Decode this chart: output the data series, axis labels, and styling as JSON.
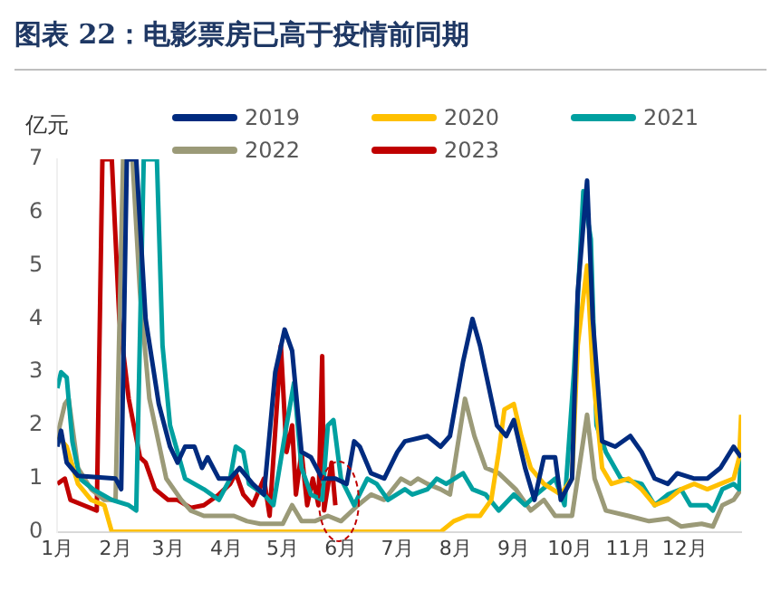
{
  "chart_data": {
    "type": "line",
    "title": "图表 22：电影票房已高于疫情前同期",
    "ylabel": "亿元",
    "xlim": [
      "--01-01",
      "--12-31"
    ],
    "xticks": [
      {
        "value": "--01-01",
        "label": "1月"
      },
      {
        "value": "--02-01",
        "label": "2月"
      },
      {
        "value": "--03-01",
        "label": "3月"
      },
      {
        "value": "--04-01",
        "label": "4月"
      },
      {
        "value": "--05-01",
        "label": "5月"
      },
      {
        "value": "--06-01",
        "label": "6月"
      },
      {
        "value": "--07-01",
        "label": "7月"
      },
      {
        "value": "--08-01",
        "label": "8月"
      },
      {
        "value": "--09-01",
        "label": "9月"
      },
      {
        "value": "--10-01",
        "label": "10月"
      },
      {
        "value": "--11-01",
        "label": "11月"
      },
      {
        "value": "--12-01",
        "label": "12月"
      }
    ],
    "ylim": [
      0,
      7
    ],
    "yticks": [
      0,
      1,
      2,
      3,
      4,
      5,
      6,
      7
    ],
    "grid": false,
    "legend": "top",
    "marker": "none",
    "line_style": "solid",
    "series": [
      {
        "name": "2019",
        "color": "#002b7f",
        "x": [
          "--01-01",
          "--01-03",
          "--01-06",
          "--01-12",
          "--02-01",
          "--02-04",
          "--02-07",
          "--02-12",
          "--02-17",
          "--02-24",
          "--03-02",
          "--03-06",
          "--03-10",
          "--03-15",
          "--03-19",
          "--03-22",
          "--03-28",
          "--04-03",
          "--04-08",
          "--04-15",
          "--04-21",
          "--04-27",
          "--05-02",
          "--05-06",
          "--05-11",
          "--05-16",
          "--05-22",
          "--05-29",
          "--06-04",
          "--06-08",
          "--06-11",
          "--06-17",
          "--06-24",
          "--07-01",
          "--07-05",
          "--07-17",
          "--07-24",
          "--07-29",
          "--08-05",
          "--08-10",
          "--08-14",
          "--08-17",
          "--08-23",
          "--08-28",
          "--09-01",
          "--09-07",
          "--09-12",
          "--09-17",
          "--09-23",
          "--09-26",
          "--10-02",
          "--10-05",
          "--10-10",
          "--10-13",
          "--10-18",
          "--10-25",
          "--11-02",
          "--11-08",
          "--11-15",
          "--11-22",
          "--11-27",
          "--12-06",
          "--12-13",
          "--12-20",
          "--12-27",
          "--12-31"
        ],
        "values": [
          1.6,
          1.9,
          1.3,
          1.05,
          1.0,
          0.8,
          7,
          7,
          4.0,
          2.4,
          1.6,
          1.3,
          1.6,
          1.6,
          1.2,
          1.4,
          1.0,
          1.0,
          1.2,
          0.9,
          0.7,
          3.0,
          3.8,
          3.4,
          1.5,
          1.4,
          1.0,
          1.0,
          0.9,
          1.7,
          1.6,
          1.1,
          1.0,
          1.5,
          1.7,
          1.8,
          1.6,
          1.8,
          3.2,
          4.0,
          3.5,
          3.0,
          2.0,
          1.8,
          2.1,
          1.2,
          0.6,
          1.4,
          1.4,
          0.6,
          1.0,
          4.5,
          6.6,
          4.0,
          1.7,
          1.6,
          1.8,
          1.5,
          1.0,
          0.9,
          1.1,
          1.0,
          1.0,
          1.2,
          1.6,
          1.4
        ]
      },
      {
        "name": "2020",
        "color": "#ffc000",
        "x": [
          "--01-01",
          "--01-06",
          "--01-12",
          "--01-19",
          "--01-26",
          "--01-30",
          "--07-24",
          "--07-31",
          "--08-07",
          "--08-14",
          "--08-20",
          "--08-24",
          "--08-27",
          "--09-01",
          "--09-05",
          "--09-10",
          "--09-17",
          "--09-26",
          "--10-02",
          "--10-05",
          "--10-10",
          "--10-13",
          "--10-18",
          "--10-23",
          "--11-01",
          "--11-08",
          "--11-15",
          "--11-22",
          "--11-29",
          "--12-06",
          "--12-13",
          "--12-20",
          "--12-27",
          "--12-30",
          "--12-31"
        ],
        "values": [
          1.8,
          1.6,
          0.9,
          0.6,
          0.5,
          0,
          0,
          0.2,
          0.3,
          0.3,
          0.6,
          1.5,
          2.3,
          2.4,
          1.8,
          1.2,
          0.9,
          0.7,
          1.0,
          3.5,
          5.0,
          3.0,
          1.2,
          0.9,
          1.0,
          0.8,
          0.5,
          0.6,
          0.8,
          0.9,
          0.8,
          0.9,
          1.0,
          1.4,
          2.2
        ]
      },
      {
        "name": "2021",
        "color": "#00a0a0",
        "x": [
          "--01-01",
          "--01-03",
          "--01-06",
          "--01-09",
          "--01-13",
          "--01-20",
          "--01-30",
          "--02-08",
          "--02-12",
          "--02-16",
          "--02-23",
          "--02-26",
          "--03-02",
          "--03-10",
          "--03-20",
          "--03-28",
          "--04-03",
          "--04-06",
          "--04-10",
          "--04-13",
          "--04-21",
          "--04-26",
          "--05-03",
          "--05-07",
          "--05-11",
          "--05-16",
          "--05-22",
          "--05-25",
          "--05-28",
          "--06-01",
          "--06-08",
          "--06-15",
          "--06-20",
          "--06-26",
          "--07-05",
          "--07-09",
          "--07-17",
          "--07-22",
          "--07-27",
          "--08-05",
          "--08-10",
          "--08-17",
          "--08-24",
          "--09-01",
          "--09-07",
          "--09-13",
          "--09-23",
          "--09-28",
          "--10-03",
          "--10-08",
          "--10-12",
          "--10-15",
          "--10-20",
          "--10-28",
          "--11-08",
          "--11-15",
          "--11-22",
          "--11-29",
          "--12-04",
          "--12-13",
          "--12-16",
          "--12-21",
          "--12-27",
          "--12-30",
          "--12-31"
        ],
        "values": [
          2.7,
          3.0,
          2.9,
          1.7,
          1.0,
          0.8,
          0.6,
          0.5,
          0.4,
          7,
          7,
          3.5,
          2.0,
          1.0,
          0.8,
          0.6,
          1.0,
          1.6,
          1.5,
          0.9,
          0.7,
          0.5,
          2.0,
          2.8,
          1.2,
          0.7,
          0.6,
          2.0,
          2.1,
          1.0,
          0.5,
          1.0,
          0.9,
          0.6,
          0.8,
          0.7,
          0.8,
          1.0,
          0.9,
          1.1,
          0.8,
          0.7,
          0.4,
          0.7,
          0.5,
          0.7,
          1.0,
          0.5,
          3.0,
          6.4,
          5.5,
          2.0,
          1.5,
          1.0,
          0.9,
          0.5,
          0.7,
          0.8,
          0.5,
          0.5,
          0.4,
          0.8,
          0.9,
          0.8,
          1.5
        ]
      },
      {
        "name": "2022",
        "color": "#9b9a78",
        "x": [
          "--01-01",
          "--01-05",
          "--01-07",
          "--01-12",
          "--01-19",
          "--01-26",
          "--02-01",
          "--02-05",
          "--02-10",
          "--02-14",
          "--02-19",
          "--02-28",
          "--03-08",
          "--03-13",
          "--03-20",
          "--04-05",
          "--04-12",
          "--04-19",
          "--05-01",
          "--05-06",
          "--05-11",
          "--05-18",
          "--05-25",
          "--06-01",
          "--06-10",
          "--06-17",
          "--06-24",
          "--07-03",
          "--07-08",
          "--07-12",
          "--07-17",
          "--07-24",
          "--07-29",
          "--08-06",
          "--08-11",
          "--08-17",
          "--08-24",
          "--09-02",
          "--09-10",
          "--09-17",
          "--09-23",
          "--10-02",
          "--10-10",
          "--10-14",
          "--10-20",
          "--11-01",
          "--11-12",
          "--11-22",
          "--11-29",
          "--12-10",
          "--12-16",
          "--12-21",
          "--12-27",
          "--12-31"
        ],
        "values": [
          1.8,
          2.4,
          2.5,
          1.2,
          0.8,
          0.6,
          0.6,
          7,
          7,
          4.5,
          2.5,
          1.0,
          0.6,
          0.4,
          0.3,
          0.3,
          0.2,
          0.15,
          0.15,
          0.5,
          0.2,
          0.2,
          0.3,
          0.2,
          0.5,
          0.7,
          0.6,
          1.0,
          0.9,
          1.0,
          0.9,
          0.8,
          0.7,
          2.5,
          1.8,
          1.2,
          1.1,
          0.8,
          0.4,
          0.6,
          0.3,
          0.3,
          2.2,
          1.0,
          0.4,
          0.3,
          0.2,
          0.25,
          0.1,
          0.15,
          0.1,
          0.5,
          0.6,
          0.8
        ]
      },
      {
        "name": "2023",
        "color": "#c00000",
        "x": [
          "--01-01",
          "--01-05",
          "--01-08",
          "--01-15",
          "--01-22",
          "--01-25",
          "--01-30",
          "--02-03",
          "--02-08",
          "--02-14",
          "--02-17",
          "--02-22",
          "--03-01",
          "--03-06",
          "--03-13",
          "--03-20",
          "--03-28",
          "--04-03",
          "--04-06",
          "--04-10",
          "--04-15",
          "--04-21",
          "--04-24",
          "--04-30",
          "--05-03",
          "--05-06",
          "--05-08",
          "--05-11",
          "--05-14",
          "--05-17",
          "--05-20",
          "--05-22",
          "--05-23",
          "--05-27",
          "--05-29"
        ],
        "values": [
          0.9,
          1.0,
          0.6,
          0.5,
          0.4,
          7,
          7,
          4.0,
          2.5,
          1.4,
          1.3,
          0.8,
          0.6,
          0.6,
          0.45,
          0.5,
          0.7,
          0.9,
          1.1,
          0.7,
          0.5,
          1.0,
          0.3,
          3.5,
          1.5,
          2.0,
          0.7,
          1.5,
          0.5,
          1.0,
          0.5,
          3.3,
          0.4,
          1.3,
          0.5
        ]
      }
    ]
  }
}
